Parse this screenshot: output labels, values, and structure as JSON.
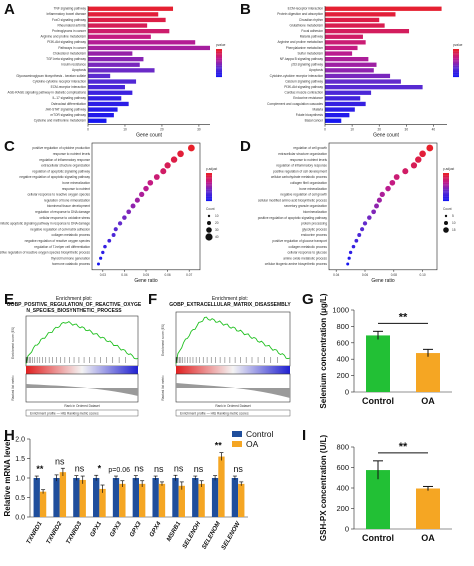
{
  "panel_letters": [
    "A",
    "B",
    "C",
    "D",
    "E",
    "F",
    "G",
    "H",
    "I"
  ],
  "panelA": {
    "terms": [
      "TNF signaling pathway",
      "Inflammatory bowel disease",
      "FoxO signaling pathway",
      "Rheumatoid arthritis",
      "Proteoglycans in cancer",
      "Arginine and proline metabolism",
      "PI3K-Akt signaling pathway",
      "Pathways in cancer",
      "Cholesterol metabolism",
      "TGF-beta signaling pathway",
      "Insulin resistance",
      "Apoptosis",
      "Glycosaminoglycan biosynthesis - keratan sulfate",
      "Cytokine-cytokine receptor interaction",
      "ECM-receptor interaction",
      "AGE-RAGE signaling pathway in diabetic complications",
      "IL-17 signaling pathway",
      "Osteoclast differentiation",
      "JAK-STAT signaling pathway",
      "mTOR signaling pathway",
      "Cysteine and methionine metabolism"
    ],
    "counts": [
      23,
      19,
      21,
      16,
      22,
      17,
      29,
      33,
      12,
      15,
      14,
      18,
      6,
      13,
      10,
      12,
      9,
      11,
      8,
      7,
      5
    ],
    "pvals": [
      0.001,
      0.002,
      0.004,
      0.006,
      0.009,
      0.012,
      0.015,
      0.017,
      0.019,
      0.021,
      0.023,
      0.025,
      0.027,
      0.029,
      0.031,
      0.033,
      0.035,
      0.036,
      0.037,
      0.038,
      0.04
    ],
    "xlabel": "Gene count",
    "ticks": [
      "0",
      "10",
      "20",
      "30"
    ],
    "legend_title": "pvalue"
  },
  "panelB": {
    "terms": [
      "ECM-receptor interaction",
      "Protein digestion and absorption",
      "Circadian rhythm",
      "Glutathione metabolism",
      "Focal adhesion",
      "Malaria pathway",
      "Arginine and proline metabolism",
      "Phenylalanine metabolism",
      "Sulfur metabolism",
      "NF-kappa B signaling pathway",
      "p53 signaling pathway",
      "Apoptosis",
      "Cytokine-cytokine receptor interaction",
      "Calcium signaling pathway",
      "PI3K-Akt signaling pathway",
      "Cardiac muscle contraction",
      "Endocrine resistance",
      "Complement and coagulation cascades",
      "Malaria",
      "Folate biosynthesis",
      "Basal cancer"
    ],
    "counts": [
      43,
      26,
      20,
      22,
      31,
      14,
      15,
      12,
      10,
      16,
      19,
      18,
      24,
      28,
      36,
      17,
      13,
      15,
      11,
      9,
      6
    ],
    "pvals": [
      0.001,
      0.002,
      0.004,
      0.005,
      0.007,
      0.008,
      0.01,
      0.012,
      0.014,
      0.016,
      0.018,
      0.02,
      0.023,
      0.026,
      0.028,
      0.03,
      0.032,
      0.034,
      0.036,
      0.038,
      0.04
    ],
    "xlabel": "Gene count",
    "ticks": [
      "0",
      "10",
      "20",
      "30",
      "40"
    ],
    "legend_title": "pvalue"
  },
  "panelC": {
    "terms": [
      "positive regulation of cytokine production",
      "response to nutrient levels",
      "regulation of inflammatory response",
      "extracellular structure organization",
      "regulation of apoptotic signaling pathway",
      "negative regulation of apoptotic signaling pathway",
      "bone mineralization",
      "response to nutrient",
      "cellular response to reactive oxygen species",
      "regulation of bone mineralization",
      "biomineral tissue development",
      "regulation of response to DNA damage",
      "cellular response to oxidative stress",
      "mitotic apoptotic signaling pathway in response to DNA damage",
      "negative regulation of cell-matrix adhesion",
      "collagen metabolic process",
      "negative regulation of reactive oxygen species",
      "regulation of T-helper cell differentiation",
      "positive regulation of reactive oxygen species biosynthetic process",
      "thyroid hormone generation",
      "hormone catabolic process"
    ],
    "ratios": [
      0.071,
      0.066,
      0.063,
      0.06,
      0.058,
      0.055,
      0.052,
      0.05,
      0.048,
      0.046,
      0.044,
      0.042,
      0.04,
      0.038,
      0.036,
      0.035,
      0.033,
      0.031,
      0.03,
      0.029,
      0.028
    ],
    "xlabel": "Gene ratio",
    "ticks": [
      "0.03",
      "0.04",
      "0.05",
      "0.06",
      "0.07"
    ],
    "legend_title": "p.adjust",
    "legend_count": "Count",
    "count_ticks": [
      "10",
      "20",
      "30",
      "40"
    ]
  },
  "panelD": {
    "terms": [
      "regulation of cell growth",
      "extracellular structure organization",
      "response to nutrient levels",
      "regulation of inflammatory response",
      "positive regulation of cell development",
      "cellular carbohydrate metabolic process",
      "collagen fibril organization",
      "bone mineralization",
      "negative regulation of cell growth",
      "cellular modified amino acid biosynthetic process",
      "secretory granule organization",
      "biomineralization",
      "positive regulation of apoptotic signaling pathway",
      "protein processing",
      "glycolytic process",
      "endocrine process",
      "positive regulation of glucose transport",
      "collagen metabolic process",
      "cellular response to glucose",
      "amine oxide metabolic process",
      "cellular biogenic amine biosynthetic process"
    ],
    "ratios": [
      0.105,
      0.1,
      0.097,
      0.094,
      0.088,
      0.082,
      0.079,
      0.076,
      0.072,
      0.07,
      0.068,
      0.066,
      0.063,
      0.06,
      0.058,
      0.056,
      0.054,
      0.052,
      0.05,
      0.049,
      0.048
    ],
    "xlabel": "Gene ratio",
    "ticks": [
      "0.04",
      "0.06",
      "0.08",
      "0.10"
    ],
    "legend_title": "p.adjust",
    "legend_count": "Count",
    "count_ticks": [
      "5",
      "10",
      "15"
    ]
  },
  "panelE": {
    "title_line1": "Enrichment plot:",
    "title_line2": "GOBP_POSITIVE_REGULATION_OF_REACTIVE_OXYGE",
    "title_line3": "N_SPECIES_BIOSYNTHETIC_PROCESS",
    "ylabel_top": "Enrichment score (ES)",
    "ylabel_bottom": "Ranked list metric",
    "xlabel": "Rank in Ordered Dataset",
    "legend": "Enrichment profile — Hits   Ranking metric scores"
  },
  "panelF": {
    "title_line1": "Enrichment plot:",
    "title_line2": "GOBP_EXTRACELLULAR_MATRIX_DISASSEMBLY",
    "ylabel_top": "Enrichment score (ES)",
    "ylabel_bottom": "Ranked list metric",
    "xlabel": "Rank in Ordered Dataset",
    "legend": "Enrichment profile — Hits   Ranking metric scores"
  },
  "colors": {
    "red": "#e8202a",
    "magenta": "#c01a8c",
    "purple": "#5e2ccf",
    "blue": "#1616f0",
    "green": "#22c035",
    "orange": "#f5a623",
    "navy": "#1f4e9c"
  },
  "chart_data": [
    {
      "type": "bar",
      "panel": "G",
      "categories": [
        "Control",
        "OA"
      ],
      "values": [
        690,
        475
      ],
      "errors": [
        50,
        45
      ],
      "ylabel": "Selenium concentration (μg/L)",
      "ylim": [
        0,
        1000
      ],
      "yticks": [
        "0",
        "200",
        "400",
        "600",
        "800",
        "1000"
      ],
      "significance": "**"
    },
    {
      "type": "bar",
      "panel": "I",
      "categories": [
        "Control",
        "OA"
      ],
      "values": [
        575,
        395
      ],
      "errors": [
        90,
        20
      ],
      "ylabel": "GSH-PX concentration (U/L)",
      "ylim": [
        0,
        800
      ],
      "yticks": [
        "0",
        "200",
        "400",
        "600",
        "800"
      ],
      "significance": "**"
    },
    {
      "type": "bar",
      "panel": "H",
      "categories": [
        "TXNRD1",
        "TXNRD2",
        "TXNRD3",
        "GPX1",
        "GPX3",
        "GPX3",
        "GPX4",
        "MSRB1",
        "SELENOH",
        "SELENOM",
        "SELENOW"
      ],
      "series": [
        {
          "name": "Control",
          "values": [
            1.0,
            1.0,
            1.0,
            1.0,
            1.0,
            1.0,
            1.0,
            1.0,
            1.0,
            1.0,
            1.0
          ],
          "errors": [
            0.05,
            0.08,
            0.06,
            0.07,
            0.05,
            0.06,
            0.05,
            0.07,
            0.05,
            0.06,
            0.05
          ]
        },
        {
          "name": "OA",
          "values": [
            0.65,
            1.15,
            0.95,
            0.72,
            0.85,
            0.85,
            0.85,
            0.8,
            0.85,
            1.55,
            0.85
          ],
          "errors": [
            0.05,
            0.1,
            0.1,
            0.1,
            0.08,
            0.08,
            0.05,
            0.1,
            0.08,
            0.1,
            0.05
          ]
        }
      ],
      "significance": [
        "**",
        "ns",
        "ns",
        "*",
        "p=0.06",
        "ns",
        "ns",
        "ns",
        "ns",
        "**",
        "ns"
      ],
      "ylabel": "Relative mRNA level",
      "ylim": [
        0,
        2.0
      ],
      "yticks": [
        "0.0",
        "0.5",
        "1.0",
        "1.5",
        "2.0"
      ]
    }
  ]
}
